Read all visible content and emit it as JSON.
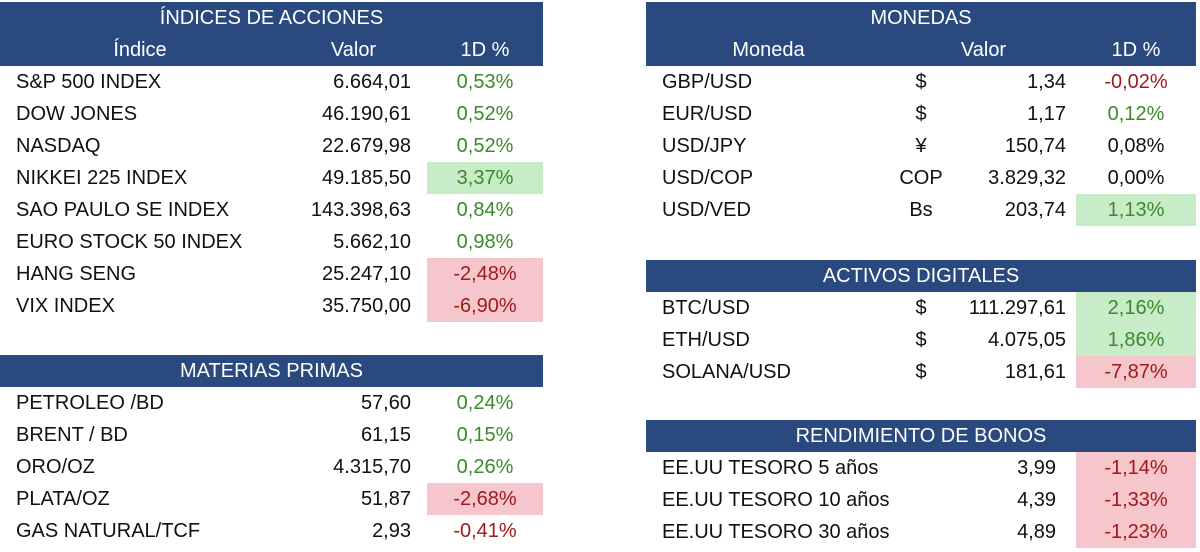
{
  "indices": {
    "title": "ÍNDICES DE ACCIONES",
    "col_name": "Índice",
    "col_value": "Valor",
    "col_change": "1D %",
    "rows": [
      {
        "name": "S&P 500 INDEX",
        "value": "6.664,01",
        "change": "0,53%",
        "trend": "pos",
        "highlight": ""
      },
      {
        "name": "DOW JONES",
        "value": "46.190,61",
        "change": "0,52%",
        "trend": "pos",
        "highlight": ""
      },
      {
        "name": "NASDAQ",
        "value": "22.679,98",
        "change": "0,52%",
        "trend": "pos",
        "highlight": ""
      },
      {
        "name": "NIKKEI 225 INDEX",
        "value": "49.185,50",
        "change": "3,37%",
        "trend": "pos",
        "highlight": "green"
      },
      {
        "name": "SAO PAULO SE INDEX",
        "value": "143.398,63",
        "change": "0,84%",
        "trend": "pos",
        "highlight": ""
      },
      {
        "name": "EURO STOCK 50 INDEX",
        "value": "5.662,10",
        "change": "0,98%",
        "trend": "pos",
        "highlight": ""
      },
      {
        "name": "HANG SENG",
        "value": "25.247,10",
        "change": "-2,48%",
        "trend": "neg",
        "highlight": "red"
      },
      {
        "name": "VIX INDEX",
        "value": "35.750,00",
        "change": "-6,90%",
        "trend": "neg",
        "highlight": "red"
      }
    ]
  },
  "commodities": {
    "title": "MATERIAS PRIMAS",
    "rows": [
      {
        "name": "PETROLEO /BD",
        "value": "57,60",
        "change": "0,24%",
        "trend": "pos",
        "highlight": ""
      },
      {
        "name": "BRENT / BD",
        "value": "61,15",
        "change": "0,15%",
        "trend": "pos",
        "highlight": ""
      },
      {
        "name": "ORO/OZ",
        "value": "4.315,70",
        "change": "0,26%",
        "trend": "pos",
        "highlight": ""
      },
      {
        "name": "PLATA/OZ",
        "value": "51,87",
        "change": "-2,68%",
        "trend": "neg",
        "highlight": "red"
      },
      {
        "name": "GAS NATURAL/TCF",
        "value": "2,93",
        "change": "-0,41%",
        "trend": "neg",
        "highlight": ""
      }
    ]
  },
  "currencies": {
    "title": "MONEDAS",
    "col_name": "Moneda",
    "col_value": "Valor",
    "col_change": "1D %",
    "rows": [
      {
        "name": "GBP/USD",
        "symbol": "$",
        "value": "1,34",
        "change": "-0,02%",
        "trend": "neg",
        "highlight": ""
      },
      {
        "name": "EUR/USD",
        "symbol": "$",
        "value": "1,17",
        "change": "0,12%",
        "trend": "pos",
        "highlight": ""
      },
      {
        "name": "USD/JPY",
        "symbol": "¥",
        "value": "150,74",
        "change": "0,08%",
        "trend": "neu",
        "highlight": ""
      },
      {
        "name": "USD/COP",
        "symbol": "COP",
        "value": "3.829,32",
        "change": "0,00%",
        "trend": "neu",
        "highlight": ""
      },
      {
        "name": "USD/VED",
        "symbol": "Bs",
        "value": "203,74",
        "change": "1,13%",
        "trend": "pos",
        "highlight": "green"
      }
    ]
  },
  "digital": {
    "title": "ACTIVOS DIGITALES",
    "rows": [
      {
        "name": "BTC/USD",
        "symbol": "$",
        "value": "111.297,61",
        "change": "2,16%",
        "trend": "pos",
        "highlight": "green"
      },
      {
        "name": "ETH/USD",
        "symbol": "$",
        "value": "4.075,05",
        "change": "1,86%",
        "trend": "pos",
        "highlight": "green"
      },
      {
        "name": "SOLANA/USD",
        "symbol": "$",
        "value": "181,61",
        "change": "-7,87%",
        "trend": "neg",
        "highlight": "red"
      }
    ]
  },
  "bonds": {
    "title": "RENDIMIENTO DE BONOS",
    "rows": [
      {
        "name": "EE.UU TESORO 5 años",
        "value": "3,99",
        "change": "-1,14%",
        "trend": "neg",
        "highlight": "red"
      },
      {
        "name": "EE.UU TESORO 10 años",
        "value": "4,39",
        "change": "-1,33%",
        "trend": "neg",
        "highlight": "red"
      },
      {
        "name": "EE.UU TESORO 30 años",
        "value": "4,89",
        "change": "-1,23%",
        "trend": "neg",
        "highlight": "red"
      }
    ]
  },
  "colors": {
    "header_bg": "#2a4a7f",
    "positive": "#3a8a2a",
    "negative": "#a11a1a",
    "highlight_green": "#c8ecc8",
    "highlight_red": "#f5c6cb"
  }
}
